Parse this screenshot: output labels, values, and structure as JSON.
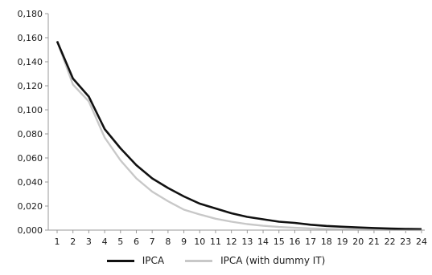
{
  "chart_data": {
    "type": "line",
    "title": "",
    "xlabel": "",
    "ylabel": "",
    "x": [
      1,
      2,
      3,
      4,
      5,
      6,
      7,
      8,
      9,
      10,
      11,
      12,
      13,
      14,
      15,
      16,
      17,
      18,
      19,
      20,
      21,
      22,
      23,
      24
    ],
    "ylim": [
      0,
      0.18
    ],
    "yticks": [
      0,
      0.02,
      0.04,
      0.06,
      0.08,
      0.1,
      0.12,
      0.14,
      0.16,
      0.18
    ],
    "ytick_labels": [
      "0,000",
      "0,020",
      "0,040",
      "0,060",
      "0,080",
      "0,100",
      "0,120",
      "0,140",
      "0,160",
      "0,180"
    ],
    "grid": false,
    "legend_position": "bottom",
    "series": [
      {
        "name": "IPCA",
        "color": "#111111",
        "values": [
          0.157,
          0.126,
          0.111,
          0.084,
          0.068,
          0.054,
          0.043,
          0.035,
          0.028,
          0.022,
          0.018,
          0.014,
          0.011,
          0.009,
          0.007,
          0.006,
          0.0045,
          0.0035,
          0.0028,
          0.0022,
          0.0017,
          0.0013,
          0.001,
          0.0008
        ]
      },
      {
        "name": "IPCA (with dummy IT)",
        "color": "#c8c8c8",
        "values": [
          0.157,
          0.121,
          0.107,
          0.077,
          0.058,
          0.043,
          0.032,
          0.024,
          0.017,
          0.013,
          0.0095,
          0.007,
          0.005,
          0.0036,
          0.0026,
          0.0019,
          0.0014,
          0.001,
          0.0007,
          0.0005,
          0.0004,
          0.0003,
          0.0002,
          0.0001
        ]
      }
    ]
  }
}
